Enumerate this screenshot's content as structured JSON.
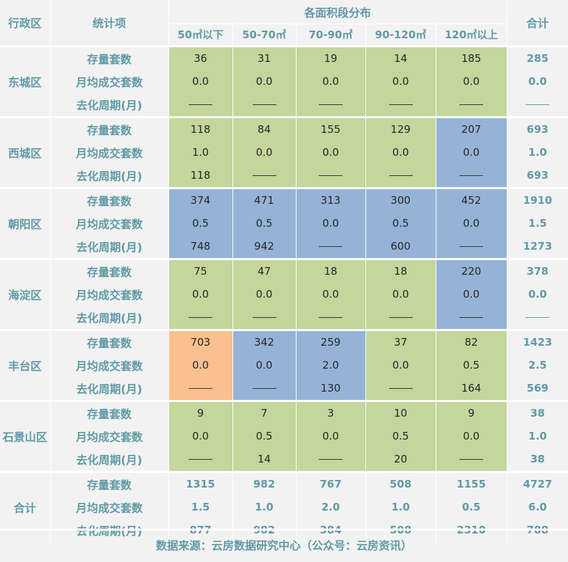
{
  "headers": {
    "district": "行政区",
    "item": "统计项",
    "area_group": "各面积段分布",
    "total": "合计",
    "areas": [
      "50㎡以下",
      "50-70㎡",
      "70-90㎡",
      "90-120㎡",
      "120㎡以上"
    ]
  },
  "item_labels": [
    "存量套数",
    "月均成交套数",
    "去化周期(月)"
  ],
  "colors": {
    "green": "#c3d69b",
    "blue": "#95b3d7",
    "orange": "#fac090",
    "text_accent": "#5f9aa6"
  },
  "districts": [
    {
      "name": "东城区",
      "rows": [
        {
          "label": "存量套数",
          "values": [
            "36",
            "31",
            "19",
            "14",
            "185"
          ],
          "total": "285"
        },
        {
          "label": "月均成交套数",
          "values": [
            "0.0",
            "0.0",
            "0.0",
            "0.0",
            "0.0"
          ],
          "total": "0.0"
        },
        {
          "label": "去化周期(月)",
          "values": [
            "——",
            "——",
            "——",
            "——",
            "——"
          ],
          "total": "——"
        }
      ],
      "cell_colors": [
        "green",
        "green",
        "green",
        "green",
        "green"
      ]
    },
    {
      "name": "西城区",
      "rows": [
        {
          "label": "存量套数",
          "values": [
            "118",
            "84",
            "155",
            "129",
            "207"
          ],
          "total": "693"
        },
        {
          "label": "月均成交套数",
          "values": [
            "1.0",
            "0.0",
            "0.0",
            "0.0",
            "0.0"
          ],
          "total": "1.0"
        },
        {
          "label": "去化周期(月)",
          "values": [
            "118",
            "——",
            "——",
            "——",
            "——"
          ],
          "total": "693"
        }
      ],
      "cell_colors": [
        "green",
        "green",
        "green",
        "green",
        "blue"
      ]
    },
    {
      "name": "朝阳区",
      "rows": [
        {
          "label": "存量套数",
          "values": [
            "374",
            "471",
            "313",
            "300",
            "452"
          ],
          "total": "1910"
        },
        {
          "label": "月均成交套数",
          "values": [
            "0.5",
            "0.5",
            "0.0",
            "0.5",
            "0.0"
          ],
          "total": "1.5"
        },
        {
          "label": "去化周期(月)",
          "values": [
            "748",
            "942",
            "——",
            "600",
            "——"
          ],
          "total": "1273"
        }
      ],
      "cell_colors": [
        "blue",
        "blue",
        "blue",
        "blue",
        "blue"
      ]
    },
    {
      "name": "海淀区",
      "rows": [
        {
          "label": "存量套数",
          "values": [
            "75",
            "47",
            "18",
            "18",
            "220"
          ],
          "total": "378"
        },
        {
          "label": "月均成交套数",
          "values": [
            "0.0",
            "0.0",
            "0.0",
            "0.0",
            "0.0"
          ],
          "total": "0.0"
        },
        {
          "label": "去化周期(月)",
          "values": [
            "——",
            "——",
            "——",
            "——",
            "——"
          ],
          "total": "——"
        }
      ],
      "cell_colors": [
        "green",
        "green",
        "green",
        "green",
        "blue"
      ]
    },
    {
      "name": "丰台区",
      "rows": [
        {
          "label": "存量套数",
          "values": [
            "703",
            "342",
            "259",
            "37",
            "82"
          ],
          "total": "1423"
        },
        {
          "label": "月均成交套数",
          "values": [
            "0.0",
            "0.0",
            "2.0",
            "0.0",
            "0.5"
          ],
          "total": "2.5"
        },
        {
          "label": "去化周期(月)",
          "values": [
            "——",
            "——",
            "130",
            "——",
            "164"
          ],
          "total": "569"
        }
      ],
      "cell_colors": [
        "orange",
        "blue",
        "blue",
        "green",
        "green"
      ]
    },
    {
      "name": "石景山区",
      "rows": [
        {
          "label": "存量套数",
          "values": [
            "9",
            "7",
            "3",
            "10",
            "9"
          ],
          "total": "38"
        },
        {
          "label": "月均成交套数",
          "values": [
            "0.0",
            "0.5",
            "0.0",
            "0.5",
            "0.0"
          ],
          "total": "1.0"
        },
        {
          "label": "去化周期(月)",
          "values": [
            "——",
            "14",
            "——",
            "20",
            "——"
          ],
          "total": "38"
        }
      ],
      "cell_colors": [
        "green",
        "green",
        "green",
        "green",
        "green"
      ]
    }
  ],
  "totals": {
    "name": "合计",
    "rows": [
      {
        "label": "存量套数",
        "values": [
          "1315",
          "982",
          "767",
          "508",
          "1155"
        ],
        "total": "4727"
      },
      {
        "label": "月均成交套数",
        "values": [
          "1.5",
          "1.0",
          "2.0",
          "1.0",
          "0.5"
        ],
        "total": "6.0"
      },
      {
        "label": "去化周期(月)",
        "values": [
          "877",
          "982",
          "384",
          "508",
          "2310"
        ],
        "total": "788"
      }
    ]
  },
  "source": "数据来源：云房数据研究中心（公众号：云房资讯）"
}
